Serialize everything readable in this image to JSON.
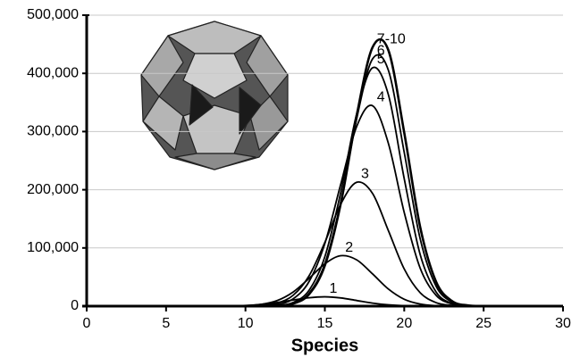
{
  "chart_data": {
    "type": "line",
    "x_label": "Species",
    "x": [
      9,
      10,
      11,
      12,
      13,
      14,
      15,
      16,
      17,
      18,
      19,
      20,
      21,
      22,
      23,
      24,
      25,
      26
    ],
    "series": [
      {
        "name": "1",
        "color": "#000000",
        "values": [
          400,
          1200,
          3100,
          6300,
          10600,
          14400,
          16000,
          14100,
          9700,
          5200,
          2200,
          700,
          200,
          0,
          0,
          0,
          0,
          0
        ]
      },
      {
        "name": "2",
        "color": "#000000",
        "values": [
          100,
          700,
          3000,
          9600,
          24200,
          47500,
          72700,
          86600,
          79600,
          55500,
          29400,
          11800,
          3600,
          800,
          100,
          0,
          0,
          0
        ]
      },
      {
        "name": "3",
        "color": "#000000",
        "values": [
          0,
          200,
          1000,
          5100,
          18600,
          51800,
          109500,
          175300,
          212800,
          193900,
          129800,
          63800,
          23100,
          6100,
          1200,
          200,
          0,
          0
        ]
      },
      {
        "name": "4",
        "color": "#000000",
        "values": [
          0,
          100,
          500,
          2800,
          12400,
          42000,
          107600,
          209300,
          308400,
          344400,
          279800,
          160800,
          65500,
          18800,
          3800,
          600,
          100,
          0
        ]
      },
      {
        "name": "5",
        "color": "#000000",
        "values": [
          0,
          0,
          100,
          1100,
          6300,
          27100,
          84900,
          195300,
          330000,
          409500,
          363400,
          218800,
          89000,
          24600,
          4600,
          600,
          0,
          0
        ]
      },
      {
        "name": "6",
        "color": "#000000",
        "values": [
          0,
          0,
          100,
          800,
          4800,
          21900,
          73100,
          178800,
          321500,
          424600,
          405400,
          264000,
          116100,
          34600,
          7000,
          1000,
          100,
          0
        ]
      },
      {
        "name": "7-10",
        "color": "#000000",
        "values": [
          0,
          0,
          100,
          700,
          4300,
          20300,
          69800,
          176000,
          326600,
          444500,
          439800,
          298000,
          136300,
          42200,
          8900,
          1200,
          100,
          0
        ]
      }
    ],
    "xlim": [
      0,
      30
    ],
    "xticks": [
      0,
      5,
      10,
      15,
      20,
      25,
      30
    ],
    "ylim": [
      0,
      500000
    ],
    "yticks": [
      0,
      {
        "value": 100000,
        "label": "100,000"
      },
      {
        "value": 200000,
        "label": "200,000"
      },
      {
        "value": 300000,
        "label": "300,000"
      },
      {
        "value": 400000,
        "label": "400,000"
      },
      {
        "value": 500000,
        "label": "500,000"
      }
    ],
    "grid": true
  }
}
